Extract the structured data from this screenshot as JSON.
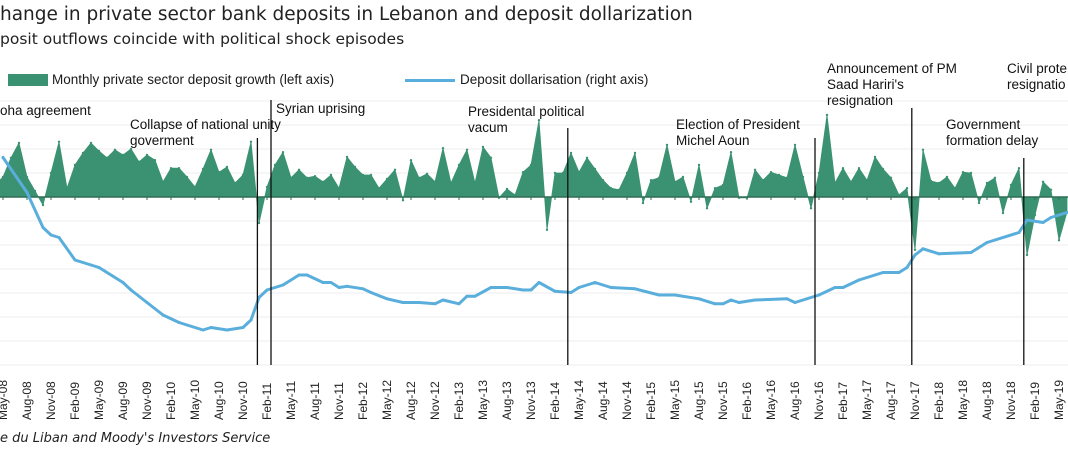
{
  "header": {
    "title": "hange in private sector bank deposits in Lebanon and deposit dollarization",
    "subtitle": "posit outflows coincide with political shock episodes"
  },
  "source": "e du Liban and Moody's Investors Service",
  "chart_data": {
    "type": "area+line",
    "legend_position": "top",
    "grid": true,
    "colors": {
      "growth": "#3b9272",
      "dollarisation": "#5aaedc",
      "event_line": "#111111"
    },
    "series": [
      {
        "name": "Monthly private sector deposit growth (left axis)",
        "type": "area",
        "axis": "left",
        "unit": "%",
        "points": [
          [
            "2008-04",
            0.3
          ],
          [
            "2008-05",
            0.5
          ],
          [
            "2008-06",
            0.98
          ],
          [
            "2008-07",
            1.35
          ],
          [
            "2008-08",
            0.5
          ],
          [
            "2008-09",
            0.15
          ],
          [
            "2008-10",
            -0.2
          ],
          [
            "2008-11",
            0.6
          ],
          [
            "2008-12",
            1.38
          ],
          [
            "2009-01",
            0.22
          ],
          [
            "2009-02",
            0.8
          ],
          [
            "2009-03",
            1.1
          ],
          [
            "2009-04",
            1.35
          ],
          [
            "2009-05",
            1.15
          ],
          [
            "2009-06",
            0.98
          ],
          [
            "2009-07",
            1.18
          ],
          [
            "2009-08",
            1.05
          ],
          [
            "2009-09",
            1.2
          ],
          [
            "2009-10",
            0.88
          ],
          [
            "2009-11",
            1.05
          ],
          [
            "2009-12",
            0.92
          ],
          [
            "2010-01",
            0.38
          ],
          [
            "2010-02",
            0.72
          ],
          [
            "2010-03",
            0.72
          ],
          [
            "2010-04",
            0.5
          ],
          [
            "2010-05",
            0.25
          ],
          [
            "2010-06",
            0.7
          ],
          [
            "2010-07",
            1.18
          ],
          [
            "2010-08",
            0.62
          ],
          [
            "2010-09",
            0.75
          ],
          [
            "2010-10",
            0.35
          ],
          [
            "2010-11",
            0.55
          ],
          [
            "2010-12",
            1.38
          ],
          [
            "2011-01",
            -0.65
          ],
          [
            "2011-02",
            0.25
          ],
          [
            "2011-03",
            0.8
          ],
          [
            "2011-04",
            1.12
          ],
          [
            "2011-05",
            0.48
          ],
          [
            "2011-06",
            0.68
          ],
          [
            "2011-07",
            0.48
          ],
          [
            "2011-08",
            0.52
          ],
          [
            "2011-09",
            0.38
          ],
          [
            "2011-10",
            0.55
          ],
          [
            "2011-11",
            0.22
          ],
          [
            "2011-12",
            1.0
          ],
          [
            "2012-01",
            0.75
          ],
          [
            "2012-02",
            0.55
          ],
          [
            "2012-03",
            0.55
          ],
          [
            "2012-04",
            0.22
          ],
          [
            "2012-05",
            0.45
          ],
          [
            "2012-06",
            0.68
          ],
          [
            "2012-07",
            -0.08
          ],
          [
            "2012-08",
            0.92
          ],
          [
            "2012-09",
            0.48
          ],
          [
            "2012-10",
            0.58
          ],
          [
            "2012-11",
            0.38
          ],
          [
            "2012-12",
            1.22
          ],
          [
            "2013-01",
            0.35
          ],
          [
            "2013-02",
            0.8
          ],
          [
            "2013-03",
            1.18
          ],
          [
            "2013-04",
            0.35
          ],
          [
            "2013-05",
            1.25
          ],
          [
            "2013-06",
            0.98
          ],
          [
            "2013-07",
            -0.02
          ],
          [
            "2013-08",
            0.2
          ],
          [
            "2013-09",
            0.05
          ],
          [
            "2013-10",
            0.62
          ],
          [
            "2013-11",
            0.8
          ],
          [
            "2013-12",
            1.92
          ],
          [
            "2014-01",
            -0.82
          ],
          [
            "2014-02",
            0.6
          ],
          [
            "2014-03",
            0.6
          ],
          [
            "2014-04",
            1.1
          ],
          [
            "2014-05",
            0.62
          ],
          [
            "2014-06",
            0.98
          ],
          [
            "2014-07",
            0.7
          ],
          [
            "2014-08",
            0.42
          ],
          [
            "2014-09",
            0.22
          ],
          [
            "2014-10",
            0.18
          ],
          [
            "2014-11",
            0.6
          ],
          [
            "2014-12",
            1.1
          ],
          [
            "2015-01",
            -0.15
          ],
          [
            "2015-02",
            0.42
          ],
          [
            "2015-03",
            0.48
          ],
          [
            "2015-04",
            1.3
          ],
          [
            "2015-05",
            0.38
          ],
          [
            "2015-06",
            0.5
          ],
          [
            "2015-07",
            -0.12
          ],
          [
            "2015-08",
            0.8
          ],
          [
            "2015-09",
            -0.28
          ],
          [
            "2015-10",
            0.22
          ],
          [
            "2015-11",
            0.3
          ],
          [
            "2015-12",
            1.12
          ],
          [
            "2016-01",
            -0.02
          ],
          [
            "2016-02",
            -0.02
          ],
          [
            "2016-03",
            0.68
          ],
          [
            "2016-04",
            0.42
          ],
          [
            "2016-05",
            0.62
          ],
          [
            "2016-06",
            0.55
          ],
          [
            "2016-07",
            0.48
          ],
          [
            "2016-08",
            1.3
          ],
          [
            "2016-09",
            0.5
          ],
          [
            "2016-10",
            -0.28
          ],
          [
            "2016-11",
            0.6
          ],
          [
            "2016-12",
            2.05
          ],
          [
            "2017-01",
            0.35
          ],
          [
            "2017-02",
            0.72
          ],
          [
            "2017-03",
            0.38
          ],
          [
            "2017-04",
            0.72
          ],
          [
            "2017-05",
            0.42
          ],
          [
            "2017-06",
            1.0
          ],
          [
            "2017-07",
            0.7
          ],
          [
            "2017-08",
            0.48
          ],
          [
            "2017-09",
            0.05
          ],
          [
            "2017-10",
            0.22
          ],
          [
            "2017-11",
            -1.32
          ],
          [
            "2017-12",
            1.18
          ],
          [
            "2018-01",
            0.4
          ],
          [
            "2018-02",
            0.35
          ],
          [
            "2018-03",
            0.5
          ],
          [
            "2018-04",
            0.22
          ],
          [
            "2018-05",
            0.62
          ],
          [
            "2018-06",
            0.6
          ],
          [
            "2018-07",
            -0.15
          ],
          [
            "2018-08",
            0.35
          ],
          [
            "2018-09",
            0.48
          ],
          [
            "2018-10",
            -0.4
          ],
          [
            "2018-11",
            0.3
          ],
          [
            "2018-12",
            0.72
          ],
          [
            "2019-01",
            -1.45
          ],
          [
            "2019-02",
            -0.45
          ],
          [
            "2019-03",
            0.38
          ],
          [
            "2019-04",
            0.18
          ],
          [
            "2019-05",
            -1.08
          ],
          [
            "2019-06",
            -0.38
          ]
        ]
      },
      {
        "name": "Deposit dollarisation (right axis)",
        "type": "line",
        "axis": "right",
        "unit": "%",
        "points": [
          [
            "2008-05",
            76.8
          ],
          [
            "2008-08",
            74.0
          ],
          [
            "2008-10",
            71.2
          ],
          [
            "2008-11",
            70.6
          ],
          [
            "2008-12",
            70.4
          ],
          [
            "2009-02",
            68.6
          ],
          [
            "2009-04",
            68.2
          ],
          [
            "2009-05",
            68.0
          ],
          [
            "2009-08",
            66.8
          ],
          [
            "2009-09",
            66.2
          ],
          [
            "2009-11",
            65.2
          ],
          [
            "2010-01",
            64.2
          ],
          [
            "2010-03",
            63.6
          ],
          [
            "2010-06",
            63.0
          ],
          [
            "2010-07",
            63.2
          ],
          [
            "2010-09",
            63.0
          ],
          [
            "2010-11",
            63.2
          ],
          [
            "2010-12",
            63.8
          ],
          [
            "2011-01",
            65.6
          ],
          [
            "2011-02",
            66.2
          ],
          [
            "2011-04",
            66.6
          ],
          [
            "2011-06",
            67.4
          ],
          [
            "2011-07",
            67.4
          ],
          [
            "2011-09",
            66.8
          ],
          [
            "2011-10",
            66.8
          ],
          [
            "2011-11",
            66.4
          ],
          [
            "2011-12",
            66.5
          ],
          [
            "2012-02",
            66.3
          ],
          [
            "2012-03",
            66.0
          ],
          [
            "2012-05",
            65.5
          ],
          [
            "2012-07",
            65.2
          ],
          [
            "2012-09",
            65.2
          ],
          [
            "2012-11",
            65.1
          ],
          [
            "2012-12",
            65.4
          ],
          [
            "2013-02",
            65.1
          ],
          [
            "2013-03",
            65.7
          ],
          [
            "2013-04",
            65.7
          ],
          [
            "2013-06",
            66.4
          ],
          [
            "2013-08",
            66.4
          ],
          [
            "2013-10",
            66.2
          ],
          [
            "2013-11",
            66.2
          ],
          [
            "2013-12",
            66.8
          ],
          [
            "2014-02",
            66.1
          ],
          [
            "2014-04",
            66.0
          ],
          [
            "2014-05",
            66.4
          ],
          [
            "2014-07",
            66.8
          ],
          [
            "2014-09",
            66.4
          ],
          [
            "2014-12",
            66.3
          ],
          [
            "2015-03",
            65.8
          ],
          [
            "2015-05",
            65.8
          ],
          [
            "2015-08",
            65.5
          ],
          [
            "2015-10",
            65.1
          ],
          [
            "2015-11",
            65.1
          ],
          [
            "2015-12",
            65.4
          ],
          [
            "2016-01",
            65.2
          ],
          [
            "2016-03",
            65.4
          ],
          [
            "2016-07",
            65.5
          ],
          [
            "2016-08",
            65.2
          ],
          [
            "2016-11",
            65.8
          ],
          [
            "2017-01",
            66.4
          ],
          [
            "2017-02",
            66.4
          ],
          [
            "2017-04",
            67.0
          ],
          [
            "2017-07",
            67.6
          ],
          [
            "2017-09",
            67.6
          ],
          [
            "2017-10",
            68.0
          ],
          [
            "2017-11",
            69.0
          ],
          [
            "2017-12",
            69.5
          ],
          [
            "2018-02",
            69.1
          ],
          [
            "2018-06",
            69.2
          ],
          [
            "2018-08",
            70.0
          ],
          [
            "2018-12",
            70.8
          ],
          [
            "2019-01",
            71.8
          ],
          [
            "2019-03",
            71.6
          ],
          [
            "2019-04",
            72.0
          ],
          [
            "2019-06",
            72.4
          ]
        ]
      }
    ],
    "x_tick_labels": [
      "May-08",
      "Aug-08",
      "Nov-08",
      "Feb-09",
      "May-09",
      "Aug-09",
      "Nov-09",
      "Feb-10",
      "May-10",
      "Aug-10",
      "Nov-10",
      "Feb-11",
      "May-11",
      "Aug-11",
      "Nov-11",
      "Feb-12",
      "May-12",
      "Aug-12",
      "Nov-12",
      "Feb-13",
      "May-13",
      "Aug-13",
      "Nov-13",
      "Feb-14",
      "May-14",
      "Aug-14",
      "Nov-14",
      "Feb-15",
      "May-15",
      "Aug-15",
      "Nov-15",
      "Feb-16",
      "May-16",
      "Aug-16",
      "Nov-16",
      "Feb-17",
      "May-17",
      "Aug-17",
      "Nov-17",
      "Feb-18",
      "May-18",
      "Aug-18",
      "Nov-18",
      "Feb-19",
      "May-19"
    ],
    "annotations": [
      {
        "lines": [
          "oha agreement"
        ],
        "date": null
      },
      {
        "lines": [
          "Collapse of national unity",
          "goverment"
        ],
        "date": "2010-12.8"
      },
      {
        "lines": [
          "Syrian uprising"
        ],
        "date": "2011-02.5"
      },
      {
        "lines": [
          "Presidental political",
          "vacum"
        ],
        "date": "2014-03.6"
      },
      {
        "lines": [
          "Election of President",
          "Michel Aoun"
        ],
        "date": "2016-10.5"
      },
      {
        "lines": [
          "Announcement of PM",
          "Saad Hariri's",
          "resignation"
        ],
        "date": "2017-10.6"
      },
      {
        "lines": [
          "Government",
          "formation delay"
        ],
        "date": "2018-12.6"
      },
      {
        "lines": [
          "Civil prote",
          "resignatio"
        ],
        "date": null
      }
    ]
  }
}
